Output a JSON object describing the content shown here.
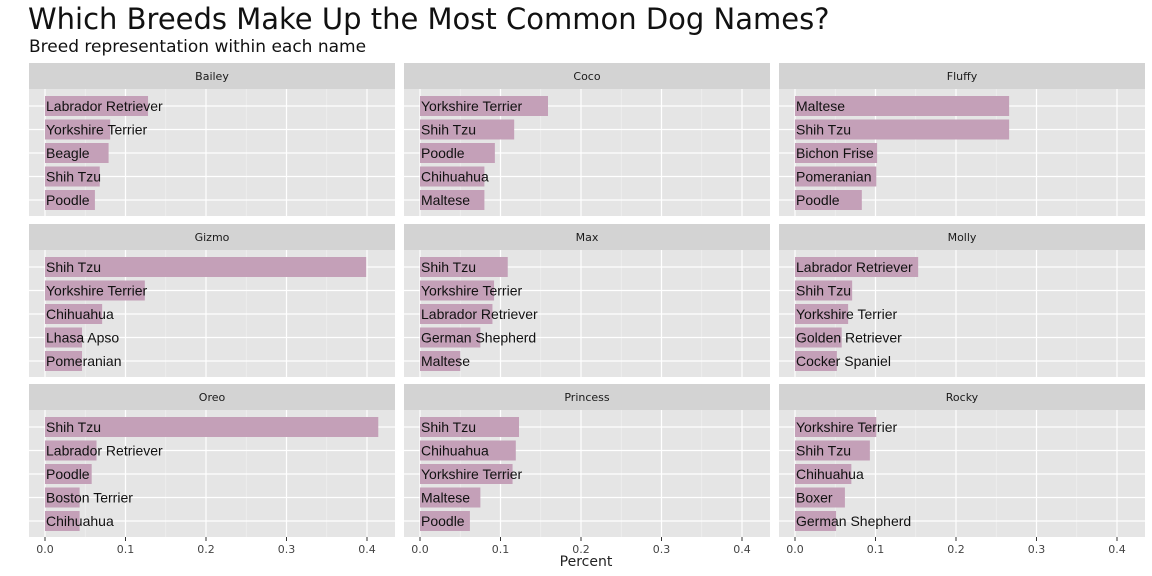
{
  "title": "Which Breeds Make Up the Most Common Dog Names?",
  "subtitle": "Breed representation within each name",
  "chart_data": {
    "type": "bar",
    "orientation": "horizontal",
    "facet_layout": "3x3",
    "xlabel": "Percent",
    "xlim": [
      0,
      0.42
    ],
    "xticks": [
      "0.0",
      "0.1",
      "0.2",
      "0.3",
      "0.4"
    ],
    "xtick_values": [
      0,
      0.1,
      0.2,
      0.3,
      0.4
    ],
    "grid": true,
    "bar_color": "#c4a0b8",
    "panel_background": "#e5e5e5",
    "strip_background": "#d3d3d3",
    "panels": [
      {
        "name": "Bailey",
        "categories": [
          "Labrador Retriever",
          "Yorkshire Terrier",
          "Beagle",
          "Shih Tzu",
          "Poodle"
        ],
        "values": [
          0.128,
          0.081,
          0.079,
          0.068,
          0.062
        ]
      },
      {
        "name": "Coco",
        "categories": [
          "Yorkshire Terrier",
          "Shih Tzu",
          "Poodle",
          "Chihuahua",
          "Maltese"
        ],
        "values": [
          0.159,
          0.117,
          0.093,
          0.08,
          0.08
        ]
      },
      {
        "name": "Fluffy",
        "categories": [
          "Maltese",
          "Shih Tzu",
          "Bichon Frise",
          "Pomeranian",
          "Poodle"
        ],
        "values": [
          0.266,
          0.266,
          0.102,
          0.101,
          0.083
        ]
      },
      {
        "name": "Gizmo",
        "categories": [
          "Shih Tzu",
          "Yorkshire Terrier",
          "Chihuahua",
          "Lhasa Apso",
          "Pomeranian"
        ],
        "values": [
          0.399,
          0.124,
          0.071,
          0.046,
          0.046
        ]
      },
      {
        "name": "Max",
        "categories": [
          "Shih Tzu",
          "Yorkshire Terrier",
          "Labrador Retriever",
          "German Shepherd",
          "Maltese"
        ],
        "values": [
          0.109,
          0.092,
          0.09,
          0.075,
          0.05
        ]
      },
      {
        "name": "Molly",
        "categories": [
          "Labrador Retriever",
          "Shih Tzu",
          "Yorkshire Terrier",
          "Golden Retriever",
          "Cocker Spaniel"
        ],
        "values": [
          0.153,
          0.071,
          0.066,
          0.058,
          0.052
        ]
      },
      {
        "name": "Oreo",
        "categories": [
          "Shih Tzu",
          "Labrador Retriever",
          "Poodle",
          "Boston Terrier",
          "Chihuahua"
        ],
        "values": [
          0.414,
          0.064,
          0.058,
          0.043,
          0.043
        ]
      },
      {
        "name": "Princess",
        "categories": [
          "Shih Tzu",
          "Chihuahua",
          "Yorkshire Terrier",
          "Maltese",
          "Poodle"
        ],
        "values": [
          0.123,
          0.119,
          0.115,
          0.075,
          0.062
        ]
      },
      {
        "name": "Rocky",
        "categories": [
          "Yorkshire Terrier",
          "Shih Tzu",
          "Chihuahua",
          "Boxer",
          "German Shepherd"
        ],
        "values": [
          0.101,
          0.093,
          0.07,
          0.062,
          0.051
        ]
      }
    ]
  }
}
